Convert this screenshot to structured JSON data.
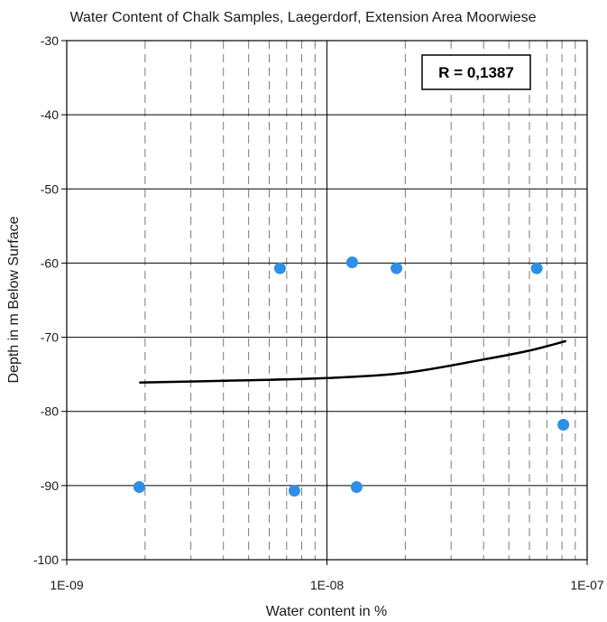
{
  "chart_data": {
    "type": "scatter",
    "title": "Water Content of Chalk Samples, Laegerdorf, Extension Area Moorwiese",
    "xlabel": "Water content in %",
    "ylabel": "Depth in m Below Surface",
    "x_scale": "log",
    "xlim": [
      1e-09,
      1e-07
    ],
    "ylim": [
      -100,
      -30
    ],
    "x_ticks": [
      1e-09,
      1e-08,
      1e-07
    ],
    "x_tick_labels": [
      "1E-09",
      "1E-08",
      "1E-07"
    ],
    "y_ticks": [
      -30,
      -40,
      -50,
      -60,
      -70,
      -80,
      -90,
      -100
    ],
    "y_tick_labels": [
      "-30",
      "-40",
      "-50",
      "-60",
      "-70",
      "-80",
      "-90",
      "-100"
    ],
    "grid": true,
    "annotation": "R = 0,1387",
    "series": [
      {
        "marker": "circle",
        "color": "#2e8fe6",
        "points": [
          {
            "x": 1.9e-09,
            "y": -90.2
          },
          {
            "x": 6.6e-09,
            "y": -60.7
          },
          {
            "x": 7.5e-09,
            "y": -90.7
          },
          {
            "x": 1.25e-08,
            "y": -59.9
          },
          {
            "x": 1.3e-08,
            "y": -90.2
          },
          {
            "x": 1.85e-08,
            "y": -60.7
          },
          {
            "x": 6.4e-08,
            "y": -60.7
          },
          {
            "x": 8.1e-08,
            "y": -81.8
          }
        ]
      },
      {
        "type": "line",
        "color": "#000000",
        "x": [
          1.9e-09,
          5e-09,
          1e-08,
          2e-08,
          4e-08,
          6e-08,
          8.3e-08
        ],
        "y": [
          -76.1,
          -75.8,
          -75.5,
          -74.8,
          -73.0,
          -71.8,
          -70.5
        ]
      }
    ]
  }
}
